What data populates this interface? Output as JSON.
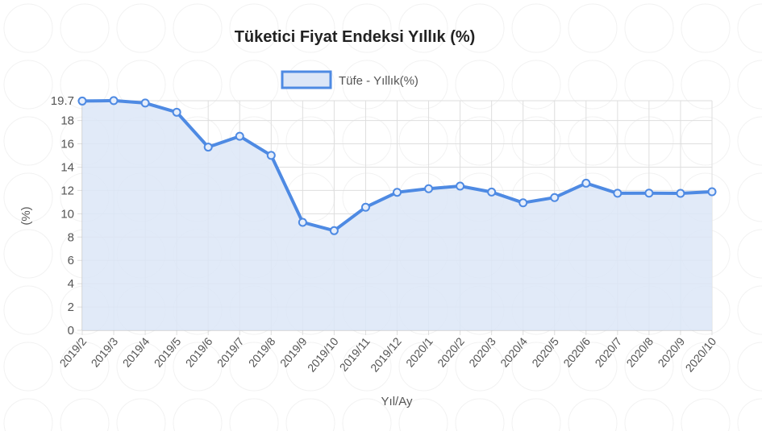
{
  "chart_data": {
    "type": "area",
    "title": "Tüketici Fiyat Endeksi Yıllık (%)",
    "xlabel": "Yıl/Ay",
    "ylabel": "(%)",
    "legend": {
      "position": "top-center"
    },
    "categories": [
      "2019/2",
      "2019/3",
      "2019/4",
      "2019/5",
      "2019/6",
      "2019/7",
      "2019/8",
      "2019/9",
      "2019/10",
      "2019/11",
      "2019/12",
      "2020/1",
      "2020/2",
      "2020/3",
      "2020/4",
      "2020/5",
      "2020/6",
      "2020/7",
      "2020/8",
      "2020/9",
      "2020/10"
    ],
    "series": [
      {
        "name": "Tüfe - Yıllık(%)",
        "color": "#4e8ae3",
        "fill": "#dce6f7",
        "values": [
          19.67,
          19.71,
          19.5,
          18.71,
          15.72,
          16.65,
          15.01,
          9.26,
          8.55,
          10.56,
          11.84,
          12.15,
          12.37,
          11.86,
          10.94,
          11.39,
          12.62,
          11.76,
          11.77,
          11.75,
          11.89
        ]
      }
    ],
    "yticks": [
      0,
      2,
      4,
      6,
      8,
      10,
      12,
      14,
      16,
      18,
      19.7
    ],
    "ylim": [
      0,
      19.7
    ],
    "grid": true
  }
}
